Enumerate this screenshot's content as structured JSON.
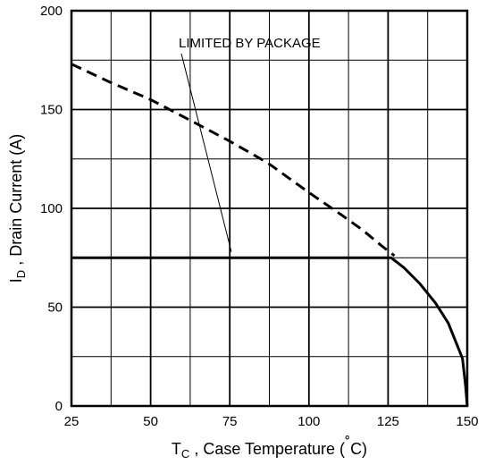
{
  "chart_data": {
    "type": "line",
    "xlabel": {
      "main": "T",
      "sub": "C",
      "rest": " , Case Temperature   (",
      "deg": "˚",
      "unit": "C)"
    },
    "ylabel": {
      "main": "I",
      "sub": "D",
      "rest": " , Drain Current (A)"
    },
    "xlim": [
      25,
      150
    ],
    "ylim": [
      0,
      200
    ],
    "xticks": [
      "25",
      "50",
      "75",
      "100",
      "125",
      "150"
    ],
    "yticks": [
      "0",
      "50",
      "100",
      "150",
      "200"
    ],
    "grid": true,
    "annotation": {
      "text": "LIMITED BY PACKAGE",
      "arrow_to": [
        75.5,
        78
      ]
    },
    "series": [
      {
        "style": "dashed",
        "x": [
          25,
          37,
          50,
          62,
          75,
          87,
          100,
          110,
          117,
          123,
          127
        ],
        "y": [
          173,
          164,
          155,
          145,
          134,
          123,
          108,
          97,
          89,
          81,
          76
        ]
      },
      {
        "style": "solid",
        "x": [
          25,
          126,
          130,
          135,
          140,
          144,
          147,
          148.5,
          149.5,
          150
        ],
        "y": [
          75,
          75,
          70,
          62,
          52,
          42,
          30,
          24,
          10,
          0
        ]
      }
    ]
  }
}
